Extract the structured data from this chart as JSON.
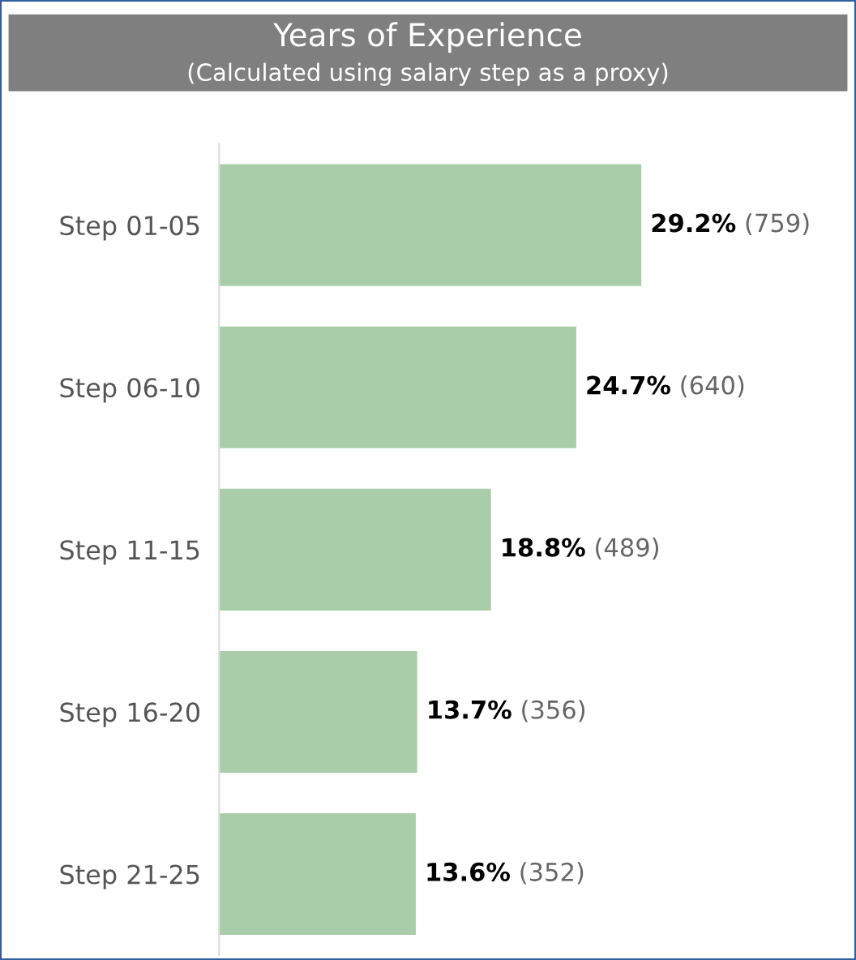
{
  "chart_data": {
    "type": "bar",
    "orientation": "horizontal",
    "title": "Years of Experience",
    "subtitle": "(Calculated using salary step as a proxy)",
    "categories": [
      "Step 01-05",
      "Step 06-10",
      "Step 11-15",
      "Step 16-20",
      "Step 21-25"
    ],
    "values": [
      29.2,
      24.7,
      18.8,
      13.7,
      13.6
    ],
    "value_labels": [
      "29.2% (759)",
      "24.7% (640)",
      "18.8% (489)",
      "13.7% (356)",
      "13.6% (352)"
    ],
    "color": "#a9cca9",
    "grid": false,
    "legend": false
  }
}
